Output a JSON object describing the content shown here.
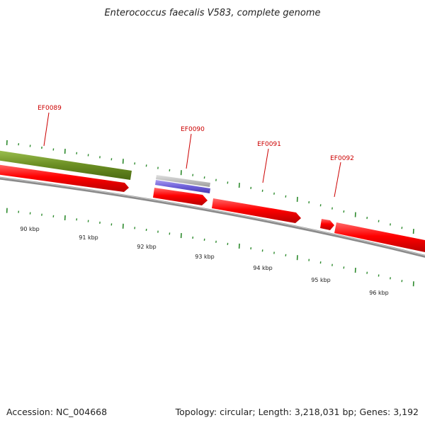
{
  "title": "Enterococcus faecalis V583, complete genome",
  "footer": {
    "accession": "Accession: NC_004668",
    "summary": "Topology: circular; Length: 3,218,031 bp; Genes: 3,192"
  },
  "genes": [
    {
      "label": "EF0089",
      "strand": "forward",
      "color": "#ff0000"
    },
    {
      "label": "EF0090",
      "strand": "forward",
      "color": "#ff0000"
    },
    {
      "label": "EF0091",
      "strand": "forward",
      "color": "#ff0000"
    },
    {
      "label": "EF0092",
      "strand": "forward",
      "color": "#ff0000"
    }
  ],
  "scale_labels": [
    "90 kbp",
    "91 kbp",
    "92 kbp",
    "93 kbp",
    "94 kbp",
    "95 kbp",
    "96 kbp"
  ],
  "colors": {
    "gene": "#ff0000",
    "feature_green": "#6b8e23",
    "feature_purple": "#7b68ee",
    "feature_gray": "#c0c0c0",
    "backbone": "#808080",
    "tick": "#2e8b2e",
    "label": "#cc0000"
  }
}
